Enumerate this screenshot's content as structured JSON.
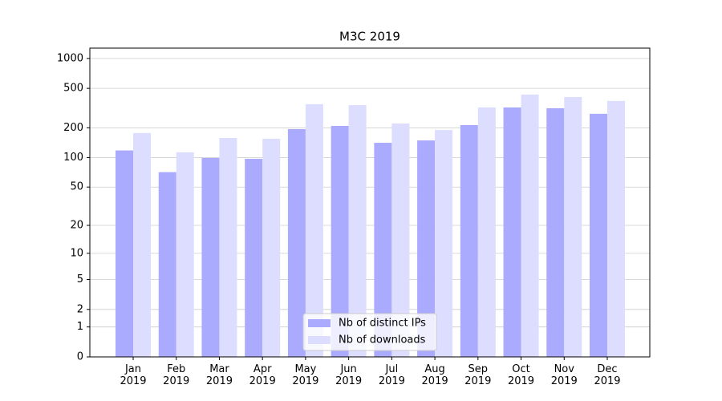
{
  "chart_data": {
    "type": "bar",
    "title": "M3C 2019",
    "categories": [
      "Jan\n2019",
      "Feb\n2019",
      "Mar\n2019",
      "Apr\n2019",
      "May\n2019",
      "Jun\n2019",
      "Jul\n2019",
      "Aug\n2019",
      "Sep\n2019",
      "Oct\n2019",
      "Nov\n2019",
      "Dec\n2019"
    ],
    "series": [
      {
        "name": "Nb of distinct IPs",
        "color": "#aaaaff",
        "values": [
          118,
          71,
          99,
          97,
          194,
          209,
          141,
          149,
          213,
          321,
          315,
          277
        ]
      },
      {
        "name": "Nb of downloads",
        "color": "#ddddff",
        "values": [
          177,
          113,
          158,
          155,
          346,
          339,
          221,
          190,
          321,
          433,
          409,
          373
        ]
      }
    ],
    "yscale": "log1p",
    "ylim": [
      0,
      1270
    ],
    "yticks": [
      0,
      1,
      2,
      5,
      10,
      20,
      50,
      100,
      200,
      500,
      1000
    ],
    "grid": true,
    "legend": "lower center"
  }
}
